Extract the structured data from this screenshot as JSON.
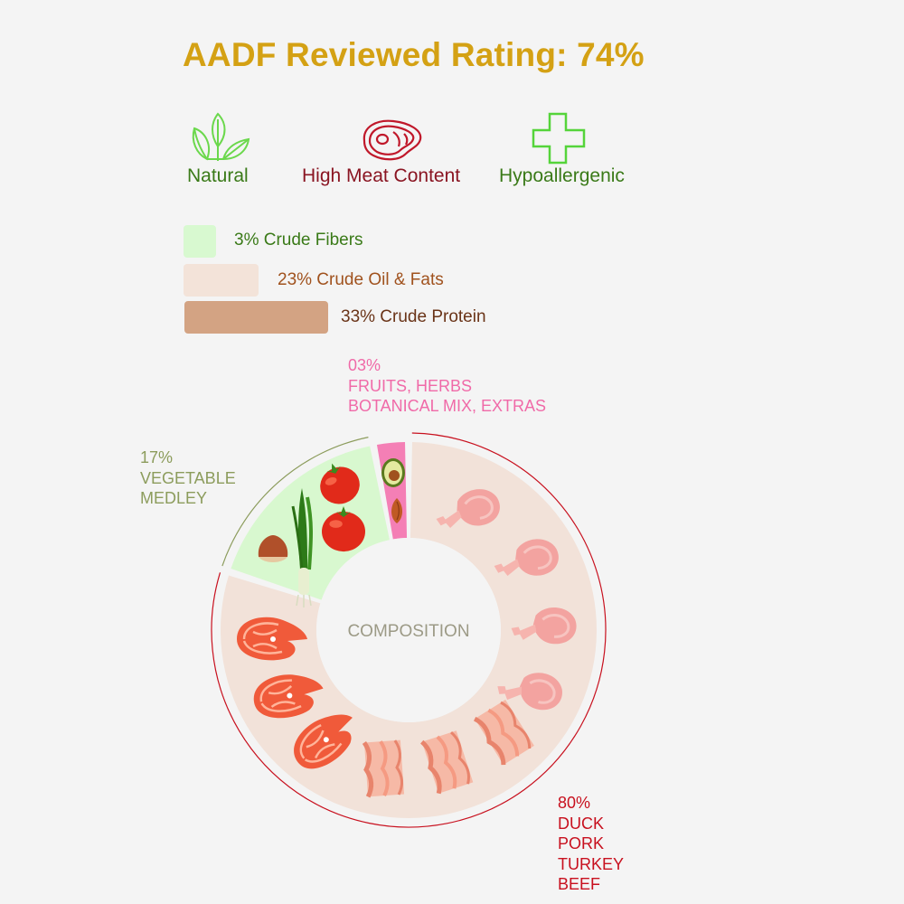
{
  "title": "AADF Reviewed Rating: 74%",
  "badges": [
    {
      "label": "Natural",
      "icon": "leaf-icon",
      "color": "#3a7a18",
      "icon_color": "#6bd84c"
    },
    {
      "label": "High Meat Content",
      "icon": "steak-icon",
      "color": "#8a1522",
      "icon_color": "#c0182a"
    },
    {
      "label": "Hypoallergenic",
      "icon": "plus-icon",
      "color": "#3a7a18",
      "icon_color": "#55d43a"
    }
  ],
  "nutrients": [
    {
      "label": "3% Crude Fibers",
      "value": 3,
      "color": "#d8f9d0",
      "text_color": "#3a7a18"
    },
    {
      "label": "23% Crude Oil & Fats",
      "value": 23,
      "color": "#f3e3d9",
      "text_color": "#a0521e"
    },
    {
      "label": "33% Crude Protein",
      "value": 33,
      "color": "#d3a383",
      "text_color": "#6a3418"
    }
  ],
  "chart_data": {
    "type": "pie",
    "center_label": "COMPOSITION",
    "slices": [
      {
        "percent": "80%",
        "lines": [
          "DUCK",
          "PORK",
          "TURKEY",
          "BEEF"
        ],
        "value": 80,
        "color": "#f2e2d9",
        "label_color": "#c8101e",
        "icons": [
          "chicken-leg-icon",
          "chicken-leg-icon",
          "chicken-leg-icon",
          "chicken-leg-icon",
          "bacon-icon",
          "bacon-icon",
          "bacon-icon",
          "salmon-steak-icon",
          "salmon-steak-icon",
          "salmon-steak-icon"
        ]
      },
      {
        "percent": "17%",
        "lines": [
          "VEGETABLE",
          "MEDLEY"
        ],
        "value": 17,
        "color": "#d8f8cf",
        "label_color": "#8c9c5c",
        "icons": [
          "tomato-icon",
          "tomato-icon",
          "scallion-icon",
          "hazelnut-icon"
        ]
      },
      {
        "percent": "03%",
        "lines": [
          "FRUITS, HERBS",
          "BOTANICAL MIX, EXTRAS"
        ],
        "value": 3,
        "color": "#f47fb5",
        "label_color": "#f06aa8",
        "icons": [
          "avocado-icon",
          "almond-icon"
        ]
      }
    ]
  }
}
